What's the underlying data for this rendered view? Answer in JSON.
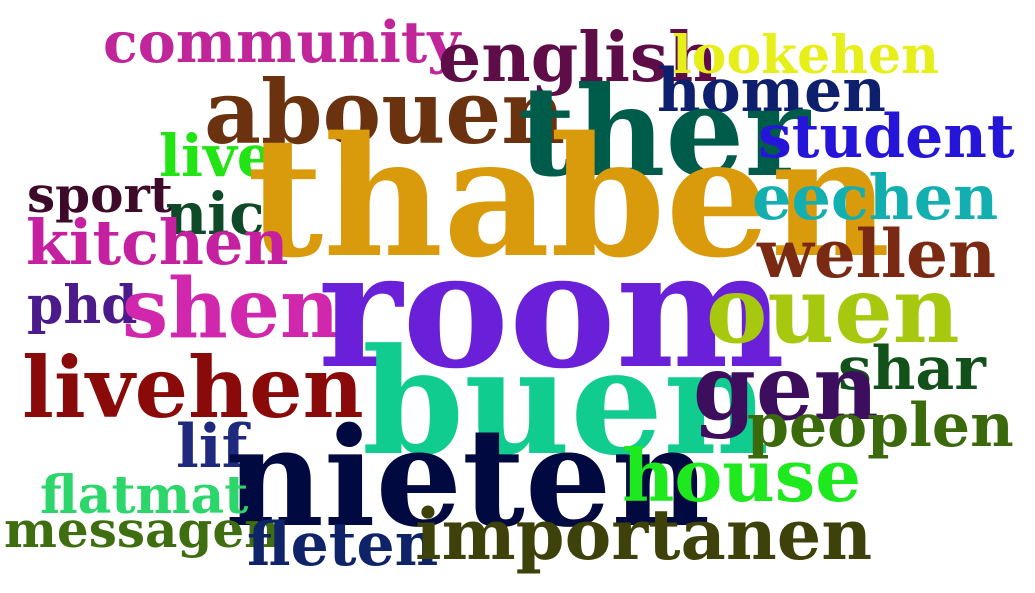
{
  "words": [
    {
      "text": "community",
      "color": "#c0269a"
    },
    {
      "text": "english",
      "color": "#5e0d48"
    },
    {
      "text": "lookehen",
      "color": "#e6ef1a"
    },
    {
      "text": "homen",
      "color": "#0e1f6e"
    },
    {
      "text": "abouen",
      "color": "#6b320f"
    },
    {
      "text": "ther",
      "color": "#005c4a"
    },
    {
      "text": "student",
      "color": "#2515d8"
    },
    {
      "text": "live",
      "color": "#22e414"
    },
    {
      "text": "thaben",
      "color": "#d99a0b"
    },
    {
      "text": "sport",
      "color": "#3d0a2a"
    },
    {
      "text": "nic",
      "color": "#0f4a28"
    },
    {
      "text": "eechen",
      "color": "#13afb0"
    },
    {
      "text": "kitchen",
      "color": "#c4209f"
    },
    {
      "text": "wellen",
      "color": "#7a2a12"
    },
    {
      "text": "phd",
      "color": "#4b1b8c"
    },
    {
      "text": "shen",
      "color": "#d027ac"
    },
    {
      "text": "room",
      "color": "#6a20d8"
    },
    {
      "text": "ouen",
      "color": "#a6c90f"
    },
    {
      "text": "livehen",
      "color": "#8a0a0a"
    },
    {
      "text": "shar",
      "color": "#12521a"
    },
    {
      "text": "buen",
      "color": "#10cc8e"
    },
    {
      "text": "gen",
      "color": "#3e0e5e"
    },
    {
      "text": "peoplen",
      "color": "#3b6a0c"
    },
    {
      "text": "lif",
      "color": "#1f2a7e"
    },
    {
      "text": "nieten",
      "color": "#000940"
    },
    {
      "text": "house",
      "color": "#1ee81e"
    },
    {
      "text": "flatmat",
      "color": "#2cd66a"
    },
    {
      "text": "messagen",
      "color": "#3e6e10"
    },
    {
      "text": "fleten",
      "color": "#0e2368"
    },
    {
      "text": "importanen",
      "color": "#3e420a"
    }
  ]
}
